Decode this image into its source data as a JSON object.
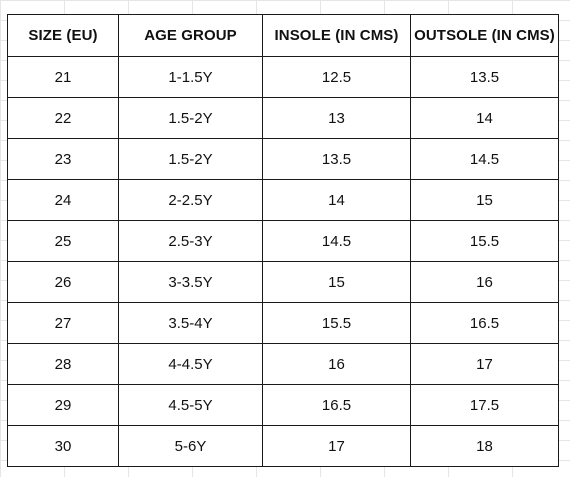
{
  "table": {
    "headers": [
      "SIZE (EU)",
      "AGE GROUP",
      "INSOLE (IN CMS)",
      "OUTSOLE (IN CMS)"
    ],
    "rows": [
      [
        "21",
        "1-1.5Y",
        "12.5",
        "13.5"
      ],
      [
        "22",
        "1.5-2Y",
        "13",
        "14"
      ],
      [
        "23",
        "1.5-2Y",
        "13.5",
        "14.5"
      ],
      [
        "24",
        "2-2.5Y",
        "14",
        "15"
      ],
      [
        "25",
        "2.5-3Y",
        "14.5",
        "15.5"
      ],
      [
        "26",
        "3-3.5Y",
        "15",
        "16"
      ],
      [
        "27",
        "3.5-4Y",
        "15.5",
        "16.5"
      ],
      [
        "28",
        "4-4.5Y",
        "16",
        "17"
      ],
      [
        "29",
        "4.5-5Y",
        "16.5",
        "17.5"
      ],
      [
        "30",
        "5-6Y",
        "17",
        "18"
      ]
    ]
  }
}
